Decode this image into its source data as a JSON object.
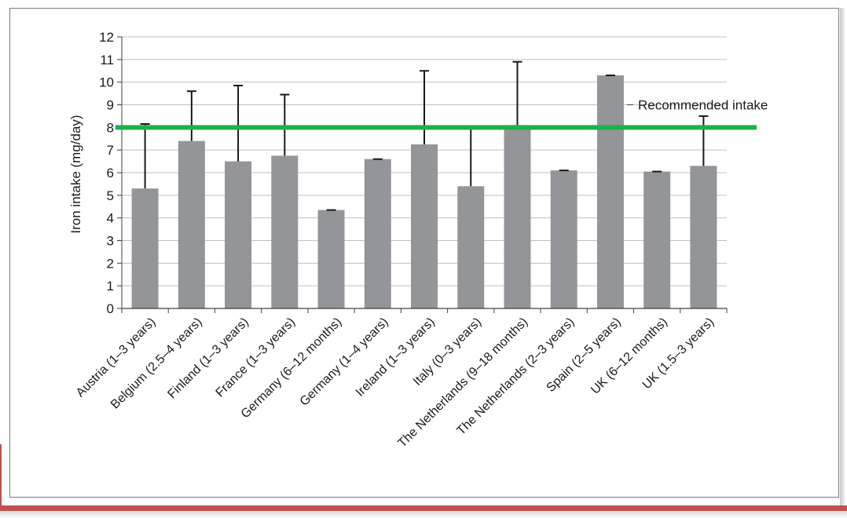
{
  "colors": {
    "bar": "#939598",
    "reference_line": "#1db14b",
    "grid": "#bfbfbf",
    "error_bar": "#1a1a1a",
    "accent_stripe": "#c0504d"
  },
  "chart_data": {
    "type": "bar",
    "title": "",
    "xlabel": "",
    "ylabel": "Iron intake (mg/day)",
    "ylim": [
      0,
      12
    ],
    "yticks": [
      0,
      1,
      2,
      3,
      4,
      5,
      6,
      7,
      8,
      9,
      10,
      11,
      12
    ],
    "grid": true,
    "categories": [
      "Austria (1–3 years)",
      "Belgium (2.5–4 years)",
      "Finland (1–3 years)",
      "France (1–3 years)",
      "Germany (6–12 months)",
      "Germany (1–4 years)",
      "Ireland (1–3 years)",
      "Italy (0–3 years)",
      "The Netherlands (9–18 months)",
      "The Netherlands (2–3 years)",
      "Spain (2–5 years)",
      "UK (6–12 months)",
      "UK (1.5–3 years)"
    ],
    "values": [
      5.3,
      7.4,
      6.5,
      6.75,
      4.35,
      6.6,
      7.25,
      5.4,
      8.1,
      6.1,
      10.3,
      6.05,
      6.3
    ],
    "error_upper": [
      8.15,
      9.6,
      9.85,
      9.45,
      4.35,
      6.6,
      10.5,
      8.05,
      10.9,
      6.1,
      10.3,
      6.05,
      8.5
    ],
    "reference_line": {
      "value": 8,
      "label": "Recommended intake"
    }
  }
}
